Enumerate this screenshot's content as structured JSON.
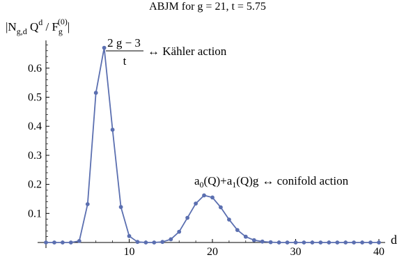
{
  "chart_data": {
    "type": "line",
    "title": "ABJM for g = 21, t = 5.75",
    "ylabel": {
      "prefix": "|N",
      "sub1": "g,d",
      "mid1": " Q",
      "sup1": "d",
      "mid2": " / F",
      "sub2": "g",
      "sup2": "(0)",
      "suffix": "|"
    },
    "xlabel": "d",
    "xlim": [
      0,
      40.5
    ],
    "ylim": [
      -0.02,
      0.72
    ],
    "xticks": [
      {
        "value": 10,
        "label": "10"
      },
      {
        "value": 20,
        "label": "20"
      },
      {
        "value": 30,
        "label": "30"
      },
      {
        "value": 40,
        "label": "40"
      }
    ],
    "yticks": [
      {
        "value": 0.1,
        "label": "0.1"
      },
      {
        "value": 0.2,
        "label": "0.2"
      },
      {
        "value": 0.3,
        "label": "0.3"
      },
      {
        "value": 0.4,
        "label": "0.4"
      },
      {
        "value": 0.5,
        "label": "0.5"
      },
      {
        "value": 0.6,
        "label": "0.6"
      }
    ],
    "series": [
      {
        "color": "#5b6fb0",
        "x": [
          0,
          1,
          2,
          3,
          4,
          5,
          6,
          7,
          8,
          9,
          10,
          11,
          12,
          13,
          14,
          15,
          16,
          17,
          18,
          19,
          20,
          21,
          22,
          23,
          24,
          25,
          26,
          27,
          28,
          29,
          30,
          31,
          32,
          33,
          34,
          35,
          36,
          37,
          38,
          39,
          40
        ],
        "y": [
          0,
          0,
          0,
          0,
          0.005,
          0.132,
          0.515,
          0.67,
          0.388,
          0.122,
          0.022,
          0.002,
          0,
          0,
          0.002,
          0.011,
          0.037,
          0.085,
          0.134,
          0.162,
          0.155,
          0.121,
          0.079,
          0.043,
          0.02,
          0.008,
          0.003,
          0.001,
          0,
          0,
          0,
          0,
          0,
          0,
          0,
          0,
          0,
          0,
          0,
          0,
          0
        ]
      }
    ],
    "annotations": [
      {
        "numerator": "2 g − 3",
        "denominator": "t",
        "text": "↔ Kähler action"
      },
      {
        "a0": "a",
        "a0_sub": "0",
        "a0_arg": "(Q)+a",
        "a1_sub": "1",
        "a1_arg": "(Q)g",
        "text": "↔ conifold action"
      }
    ]
  }
}
